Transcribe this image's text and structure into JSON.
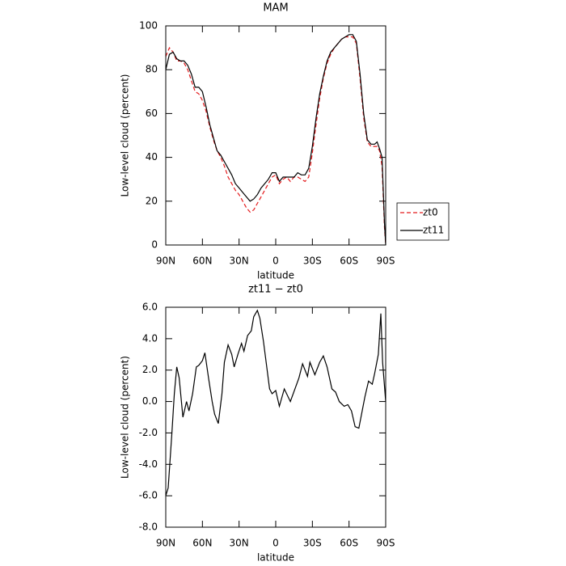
{
  "chart_data": [
    {
      "type": "line",
      "title": "MAM",
      "xlabel": "latitude",
      "ylabel": "Low-level cloud (percent)",
      "x": [
        90,
        87,
        84,
        81,
        78,
        75,
        72,
        69,
        66,
        63,
        60,
        57,
        54,
        51,
        48,
        45,
        42,
        39,
        36,
        33,
        30,
        27,
        24,
        21,
        18,
        15,
        12,
        9,
        6,
        3,
        0,
        -3,
        -6,
        -9,
        -12,
        -15,
        -18,
        -21,
        -24,
        -27,
        -30,
        -33,
        -36,
        -39,
        -42,
        -45,
        -48,
        -51,
        -54,
        -57,
        -60,
        -63,
        -66,
        -69,
        -72,
        -75,
        -78,
        -81,
        -83,
        -85,
        -87,
        -89,
        -90
      ],
      "series": [
        {
          "name": "zt0",
          "color": "#e41a1c",
          "linestyle": "dashed",
          "values": [
            86,
            90,
            88,
            84,
            84,
            83,
            80,
            75,
            70,
            69,
            66,
            61,
            54,
            48,
            43,
            40,
            36,
            31,
            28,
            25,
            23,
            20,
            17,
            15,
            16,
            19,
            22,
            25,
            28,
            31,
            32,
            28,
            30,
            31,
            29,
            31,
            31,
            30,
            29,
            31,
            42,
            55,
            67,
            76,
            83,
            87,
            90,
            92,
            94,
            95,
            95,
            95,
            92,
            76,
            58,
            47,
            45,
            45,
            45,
            43,
            36,
            8,
            0
          ]
        },
        {
          "name": "zt11",
          "color": "#000000",
          "linestyle": "solid",
          "values": [
            80,
            87,
            88,
            85,
            84,
            84,
            82,
            78,
            72,
            72,
            70,
            63,
            55,
            49,
            43,
            41,
            38,
            35,
            32,
            28,
            26,
            24,
            22,
            20,
            21,
            23,
            26,
            28,
            30,
            33,
            33,
            29,
            31,
            31,
            31,
            31,
            33,
            32,
            32,
            35,
            45,
            58,
            69,
            77,
            84,
            88,
            90,
            92,
            94,
            95,
            96,
            96,
            93,
            78,
            60,
            48,
            46,
            46,
            47,
            44,
            40,
            10,
            0
          ]
        }
      ],
      "xlim": [
        90,
        -90
      ],
      "xticks": [
        {
          "value": 90,
          "label": "90N"
        },
        {
          "value": 60,
          "label": "60N"
        },
        {
          "value": 30,
          "label": "30N"
        },
        0,
        {
          "value": -30,
          "label": "30S"
        },
        {
          "value": -60,
          "label": "60S"
        },
        {
          "value": -90,
          "label": "90S"
        }
      ],
      "ylim": [
        0,
        100
      ],
      "yticks": [
        0,
        20,
        40,
        60,
        80,
        100
      ],
      "legend": "right"
    },
    {
      "type": "line",
      "title": "zt11 − zt0",
      "xlabel": "latitude",
      "ylabel": "Low-level cloud (percent)",
      "x": [
        90,
        88,
        85,
        83,
        81,
        79,
        76,
        73,
        71,
        68,
        65,
        63,
        60,
        58,
        55,
        52,
        50,
        47,
        44,
        42,
        39,
        36,
        34,
        31,
        28,
        26,
        23,
        20,
        18,
        15,
        13,
        10,
        7,
        5,
        3,
        0,
        -3,
        -7,
        -12,
        -19,
        -22,
        -26,
        -28,
        -32,
        -36,
        -39,
        -42,
        -46,
        -49,
        -52,
        -56,
        -59,
        -62,
        -65,
        -68,
        -71,
        -73,
        -76,
        -79,
        -81,
        -84,
        -86,
        -87.5,
        -90
      ],
      "series": [
        {
          "name": "zt11 − zt0",
          "color": "#000000",
          "linestyle": "solid",
          "values": [
            -6,
            -5.5,
            -2,
            0.5,
            2.2,
            1.5,
            -1,
            0,
            -0.6,
            0.5,
            2.2,
            2.3,
            2.6,
            3.1,
            1.5,
            0,
            -0.8,
            -1.4,
            0.5,
            2.5,
            3.6,
            3,
            2.2,
            3,
            3.7,
            3.2,
            4.2,
            4.5,
            5.4,
            5.8,
            5.3,
            3.8,
            2,
            0.8,
            0.5,
            0.7,
            -0.3,
            0.8,
            0,
            1.5,
            2.4,
            1.6,
            2.5,
            1.7,
            2.5,
            2.9,
            2.2,
            0.8,
            0.6,
            0,
            -0.3,
            -0.2,
            -0.6,
            -1.6,
            -1.7,
            -0.5,
            0.3,
            1.3,
            1.1,
            1.8,
            3.0,
            5.6,
            2.5,
            0
          ]
        }
      ],
      "xlim": [
        90,
        -90
      ],
      "xticks": [
        {
          "value": 90,
          "label": "90N"
        },
        {
          "value": 60,
          "label": "60N"
        },
        {
          "value": 30,
          "label": "30N"
        },
        0,
        {
          "value": -30,
          "label": "30S"
        },
        {
          "value": -60,
          "label": "60S"
        },
        {
          "value": -90,
          "label": "90S"
        }
      ],
      "ylim": [
        -8,
        6
      ],
      "yticks": [
        {
          "value": -8,
          "label": "-8.0"
        },
        {
          "value": -6,
          "label": "-6.0"
        },
        {
          "value": -4,
          "label": "-4.0"
        },
        {
          "value": -2,
          "label": "-2.0"
        },
        {
          "value": 0,
          "label": "0.0"
        },
        {
          "value": 2,
          "label": "2.0"
        },
        {
          "value": 4,
          "label": "4.0"
        },
        {
          "value": 6,
          "label": "6.0"
        }
      ]
    }
  ]
}
